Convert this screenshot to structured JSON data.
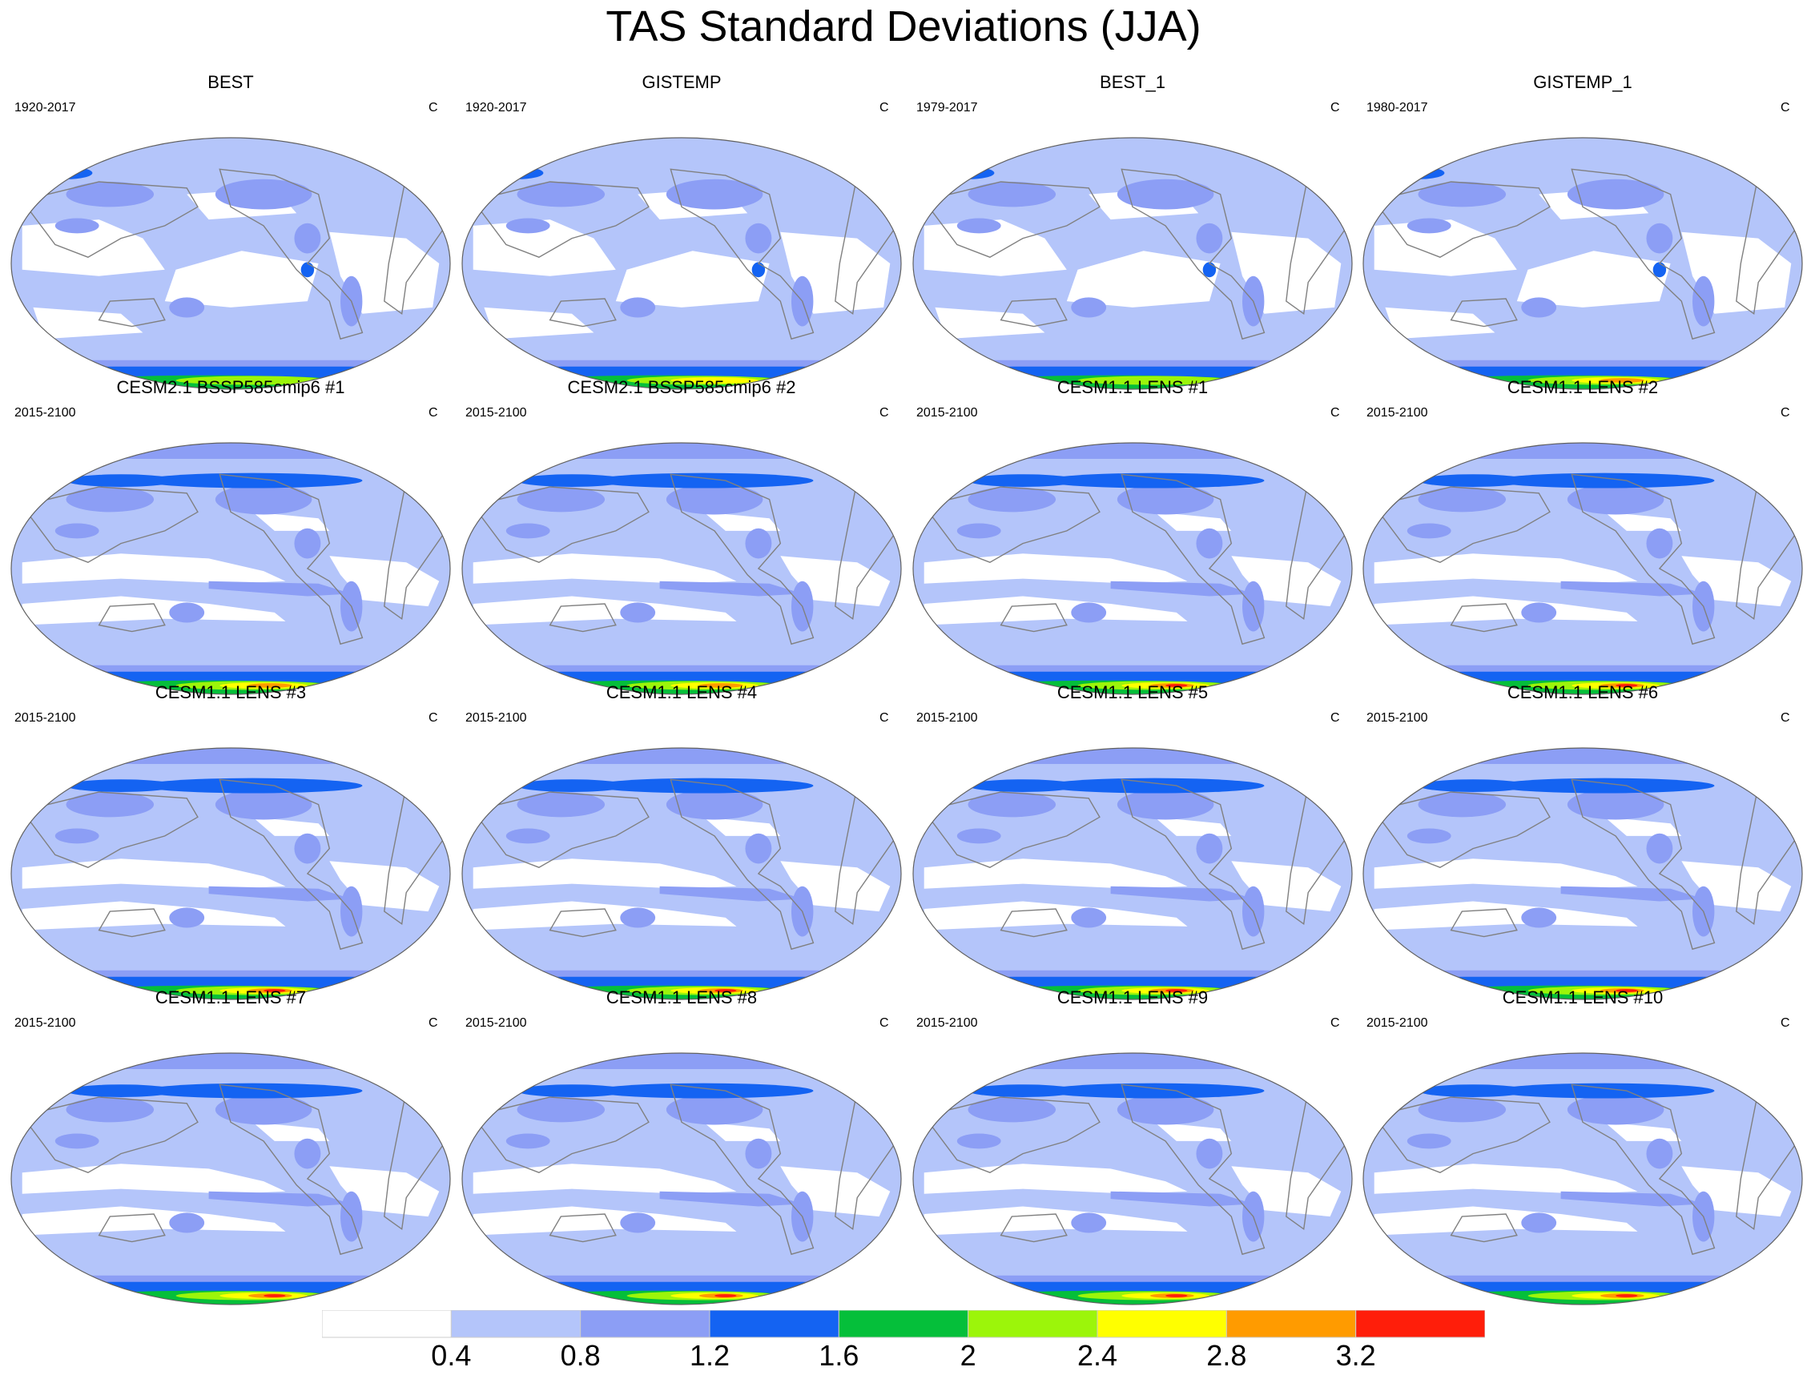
{
  "title": "TAS Standard Deviations (JJA)",
  "units": "C",
  "colors": {
    "contour_levels": [
      "#ffffff",
      "#b4c5fa",
      "#8c9ef5",
      "#1463f2",
      "#05bf3a",
      "#9cf50a",
      "#ffff00",
      "#ff9b00",
      "#ff1e0a"
    ],
    "coastline": "#808080",
    "map_border": "#606060"
  },
  "colorbar": {
    "labels": [
      "0.4",
      "0.8",
      "1.2",
      "1.6",
      "2",
      "2.4",
      "2.8",
      "3.2"
    ]
  },
  "panels": [
    {
      "title": "BEST",
      "period": "1920-2017",
      "units": "C",
      "variant": "obs",
      "max_level": 5
    },
    {
      "title": "GISTEMP",
      "period": "1920-2017",
      "units": "C",
      "variant": "obs",
      "max_level": 6
    },
    {
      "title": "BEST_1",
      "period": "1979-2017",
      "units": "C",
      "variant": "obs",
      "max_level": 5
    },
    {
      "title": "GISTEMP_1",
      "period": "1980-2017",
      "units": "C",
      "variant": "obs",
      "max_level": 7
    },
    {
      "title": "CESM2.1 BSSP585cmip6 #1",
      "period": "2015-2100",
      "units": "C",
      "variant": "model",
      "max_level": 7
    },
    {
      "title": "CESM2.1 BSSP585cmip6 #2",
      "period": "2015-2100",
      "units": "C",
      "variant": "model",
      "max_level": 7
    },
    {
      "title": "CESM1.1 LENS #1",
      "period": "2015-2100",
      "units": "C",
      "variant": "model",
      "max_level": 8
    },
    {
      "title": "CESM1.1 LENS #2",
      "period": "2015-2100",
      "units": "C",
      "variant": "model",
      "max_level": 8
    },
    {
      "title": "CESM1.1 LENS #3",
      "period": "2015-2100",
      "units": "C",
      "variant": "model",
      "max_level": 8
    },
    {
      "title": "CESM1.1 LENS #4",
      "period": "2015-2100",
      "units": "C",
      "variant": "model",
      "max_level": 8
    },
    {
      "title": "CESM1.1 LENS #5",
      "period": "2015-2100",
      "units": "C",
      "variant": "model",
      "max_level": 8
    },
    {
      "title": "CESM1.1 LENS #6",
      "period": "2015-2100",
      "units": "C",
      "variant": "model",
      "max_level": 8
    },
    {
      "title": "CESM1.1 LENS #7",
      "period": "2015-2100",
      "units": "C",
      "variant": "model",
      "max_level": 8
    },
    {
      "title": "CESM1.1 LENS #8",
      "period": "2015-2100",
      "units": "C",
      "variant": "model",
      "max_level": 8
    },
    {
      "title": "CESM1.1 LENS #9",
      "period": "2015-2100",
      "units": "C",
      "variant": "model",
      "max_level": 8
    },
    {
      "title": "CESM1.1 LENS #10",
      "period": "2015-2100",
      "units": "C",
      "variant": "model",
      "max_level": 8
    }
  ]
}
